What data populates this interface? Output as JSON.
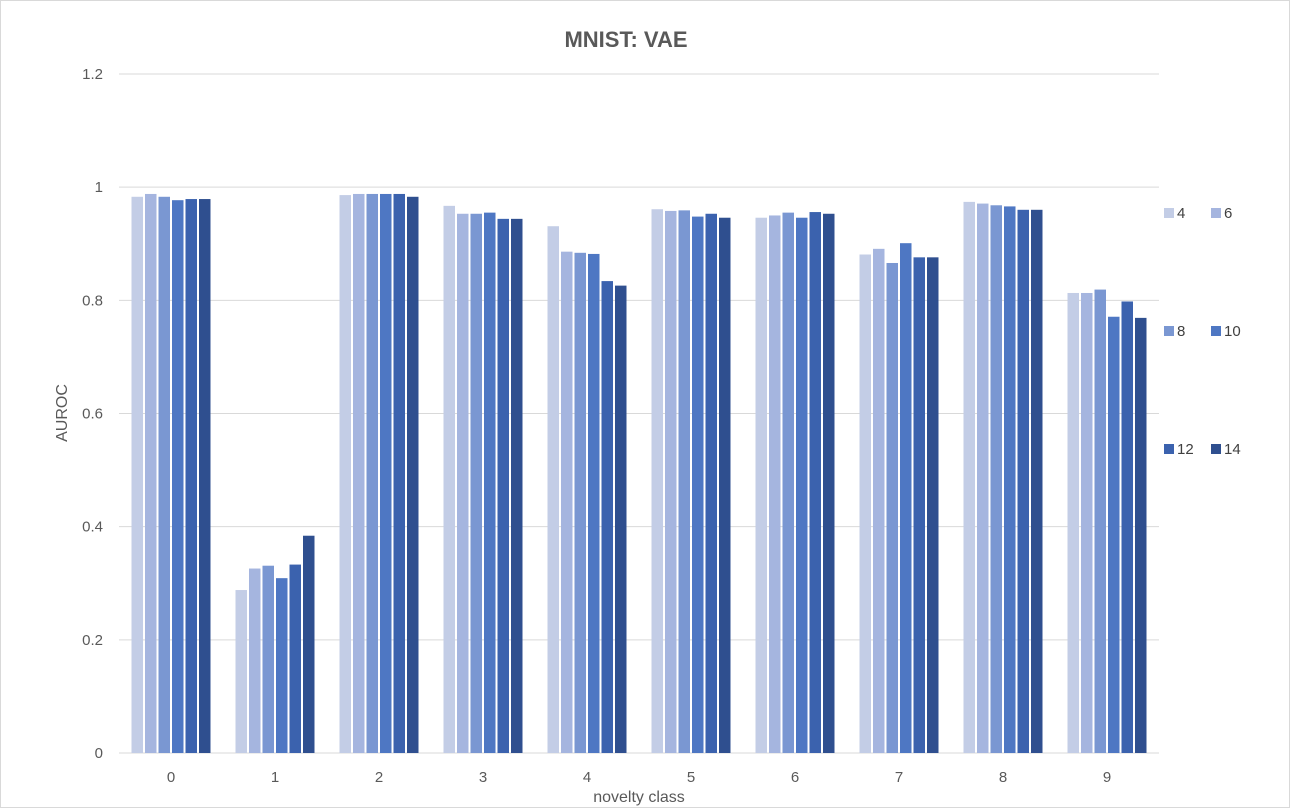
{
  "chart_data": {
    "type": "bar",
    "title": "MNIST: VAE",
    "xlabel": "novelty class",
    "ylabel": "AUROC",
    "ylim": [
      0,
      1.2
    ],
    "yticks": [
      0,
      0.2,
      0.4,
      0.6,
      0.8,
      1,
      1.2
    ],
    "ytick_labels": [
      "0",
      "0.2",
      "0.4",
      "0.6",
      "0.8",
      "1",
      "1.2"
    ],
    "grid": true,
    "legend_position": "right",
    "categories": [
      "0",
      "1",
      "2",
      "3",
      "4",
      "5",
      "6",
      "7",
      "8",
      "9"
    ],
    "series": [
      {
        "name": "4",
        "color": "#c3cde6",
        "values": [
          0.983,
          0.288,
          0.986,
          0.967,
          0.931,
          0.961,
          0.946,
          0.881,
          0.974,
          0.813
        ]
      },
      {
        "name": "6",
        "color": "#a5b5df",
        "values": [
          0.988,
          0.326,
          0.988,
          0.953,
          0.886,
          0.958,
          0.95,
          0.891,
          0.971,
          0.813
        ]
      },
      {
        "name": "8",
        "color": "#7a97d2",
        "values": [
          0.983,
          0.331,
          0.988,
          0.953,
          0.884,
          0.959,
          0.955,
          0.866,
          0.968,
          0.819
        ]
      },
      {
        "name": "10",
        "color": "#4e77c3",
        "values": [
          0.977,
          0.309,
          0.988,
          0.955,
          0.882,
          0.948,
          0.946,
          0.901,
          0.966,
          0.771
        ]
      },
      {
        "name": "12",
        "color": "#3b62ae",
        "values": [
          0.979,
          0.333,
          0.988,
          0.944,
          0.834,
          0.953,
          0.956,
          0.876,
          0.96,
          0.798
        ]
      },
      {
        "name": "14",
        "color": "#2f4f8f",
        "values": [
          0.979,
          0.384,
          0.983,
          0.944,
          0.826,
          0.946,
          0.953,
          0.876,
          0.96,
          0.769
        ]
      }
    ]
  }
}
